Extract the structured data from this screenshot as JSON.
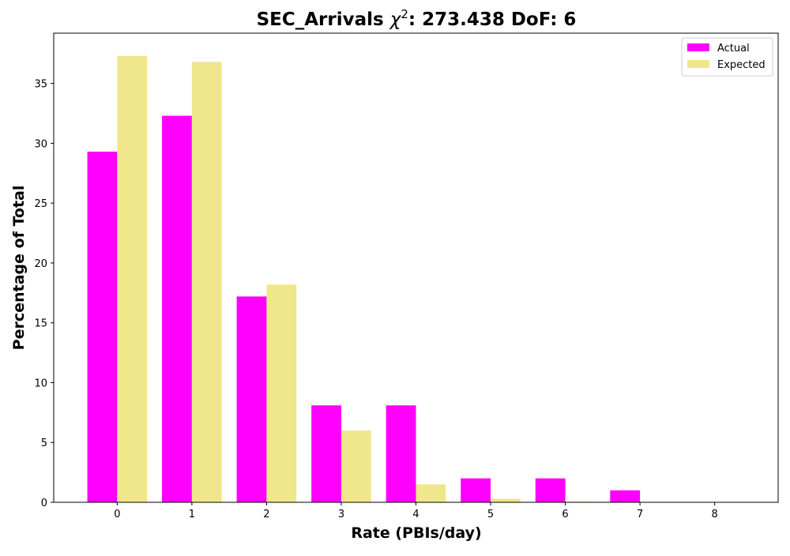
{
  "chart_data": {
    "type": "bar",
    "title_prefix": "SEC_Arrivals ",
    "title_chi": "χ",
    "title_sup": "2",
    "title_suffix": ": 273.438 DoF: 6",
    "xlabel": "Rate (PBIs/day)",
    "ylabel": "Percentage of Total",
    "categories": [
      "0",
      "1",
      "2",
      "3",
      "4",
      "5",
      "6",
      "7",
      "8"
    ],
    "series": [
      {
        "name": "Actual",
        "color": "#ff00ff",
        "values": [
          29.3,
          32.3,
          17.2,
          8.1,
          8.1,
          2.0,
          2.0,
          1.0,
          0.0
        ]
      },
      {
        "name": "Expected",
        "color": "#f0e68c",
        "values": [
          37.3,
          36.8,
          18.2,
          6.0,
          1.5,
          0.3,
          0.05,
          0.0,
          0.0
        ]
      }
    ],
    "xlim": [
      -0.85,
      8.85
    ],
    "ylim": [
      0,
      39.2
    ],
    "yticks": [
      0,
      5,
      10,
      15,
      20,
      25,
      30,
      35
    ],
    "grid": false,
    "legend_position": "top-right"
  }
}
